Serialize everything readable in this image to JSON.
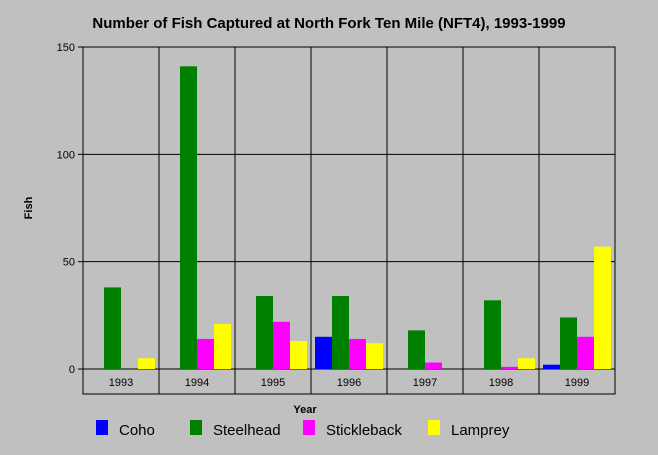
{
  "chart_data": {
    "type": "bar",
    "title": "Number of Fish Captured at North Fork Ten Mile (NFT4), 1993-1999",
    "xlabel": "Year",
    "ylabel": "Fish",
    "categories": [
      "1993",
      "1994",
      "1995",
      "1996",
      "1997",
      "1998",
      "1999"
    ],
    "ylim": [
      0,
      150
    ],
    "yticks": [
      0,
      50,
      100,
      150
    ],
    "grid": true,
    "legend_position": "bottom",
    "series": [
      {
        "name": "Coho",
        "color": "#0000ff",
        "values": [
          0,
          0,
          0,
          15,
          0,
          0,
          2
        ]
      },
      {
        "name": "Steelhead",
        "color": "#008000",
        "values": [
          38,
          141,
          34,
          34,
          18,
          32,
          24
        ]
      },
      {
        "name": "Stickleback",
        "color": "#ff00ff",
        "values": [
          0,
          14,
          22,
          14,
          3,
          1,
          15
        ]
      },
      {
        "name": "Lamprey",
        "color": "#ffff00",
        "values": [
          5,
          21,
          13,
          12,
          0,
          5,
          57
        ]
      }
    ]
  }
}
